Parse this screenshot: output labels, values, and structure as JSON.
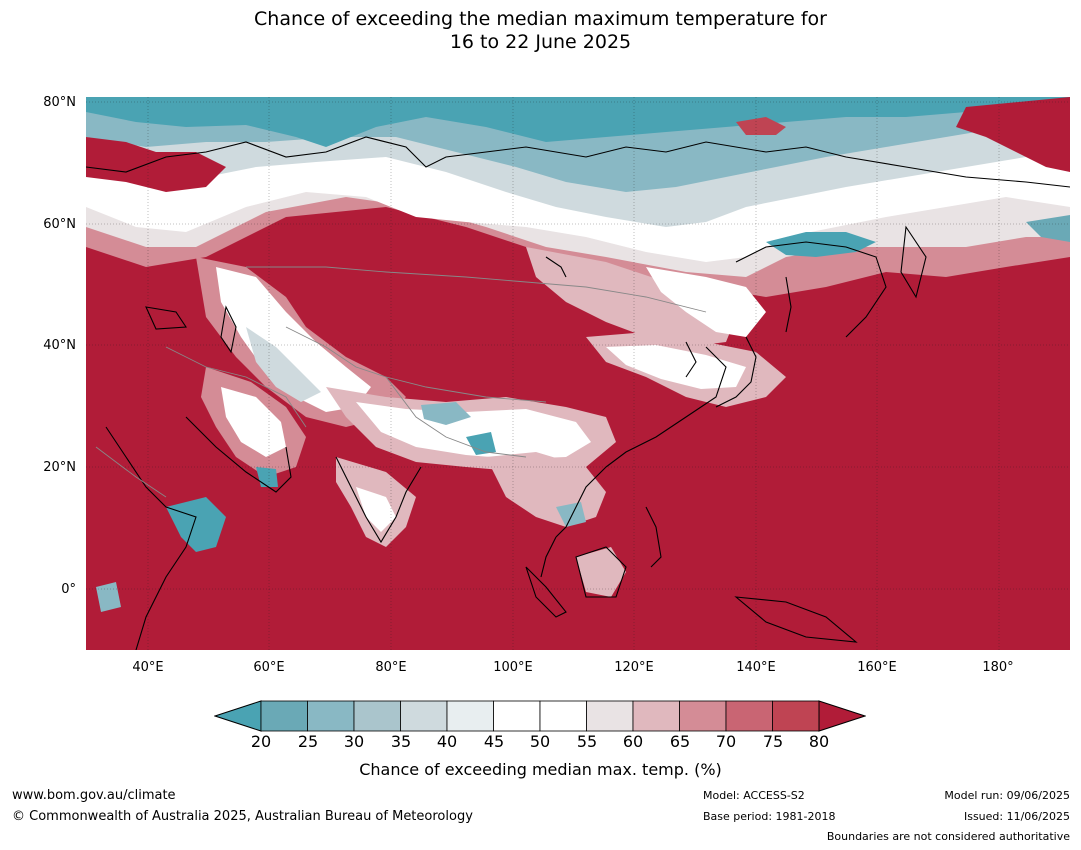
{
  "title_line1": "Chance of exceeding the median maximum temperature for",
  "title_line2": "16 to 22 June 2025",
  "map": {
    "lat_labels": [
      "80°N",
      "60°N",
      "40°N",
      "20°N",
      "0°"
    ],
    "lon_labels": [
      "40°E",
      "60°E",
      "80°E",
      "100°E",
      "120°E",
      "140°E",
      "160°E",
      "180°"
    ],
    "colors": {
      "c20": "#4aa3b3",
      "c25": "#6aa9b6",
      "c30": "#89b8c4",
      "c35": "#aac5cc",
      "c40": "#cfdade",
      "c45": "#e8eef0",
      "c50": "#ffffff",
      "c55": "#ffffff",
      "c60": "#e9e3e4",
      "c65": "#e0b8be",
      "c70": "#d48c96",
      "c75": "#c96573",
      "c80": "#bf4453",
      "c80plus": "#b11c38",
      "coast": "#000000",
      "border": "#888888"
    }
  },
  "colorbar": {
    "ticks": [
      "20",
      "25",
      "30",
      "35",
      "40",
      "45",
      "50",
      "55",
      "60",
      "65",
      "70",
      "75",
      "80"
    ],
    "label": "Chance of exceeding median max. temp. (%)"
  },
  "footer": {
    "website": "www.bom.gov.au/climate",
    "copyright": "© Commonwealth of Australia 2025, Australian Bureau of Meteorology",
    "model": "Model: ACCESS-S2",
    "base_period": "Base period: 1981-2018",
    "model_run": "Model run: 09/06/2025",
    "issued": "Issued: 11/06/2025",
    "boundaries": "Boundaries are not considered authoritative"
  }
}
